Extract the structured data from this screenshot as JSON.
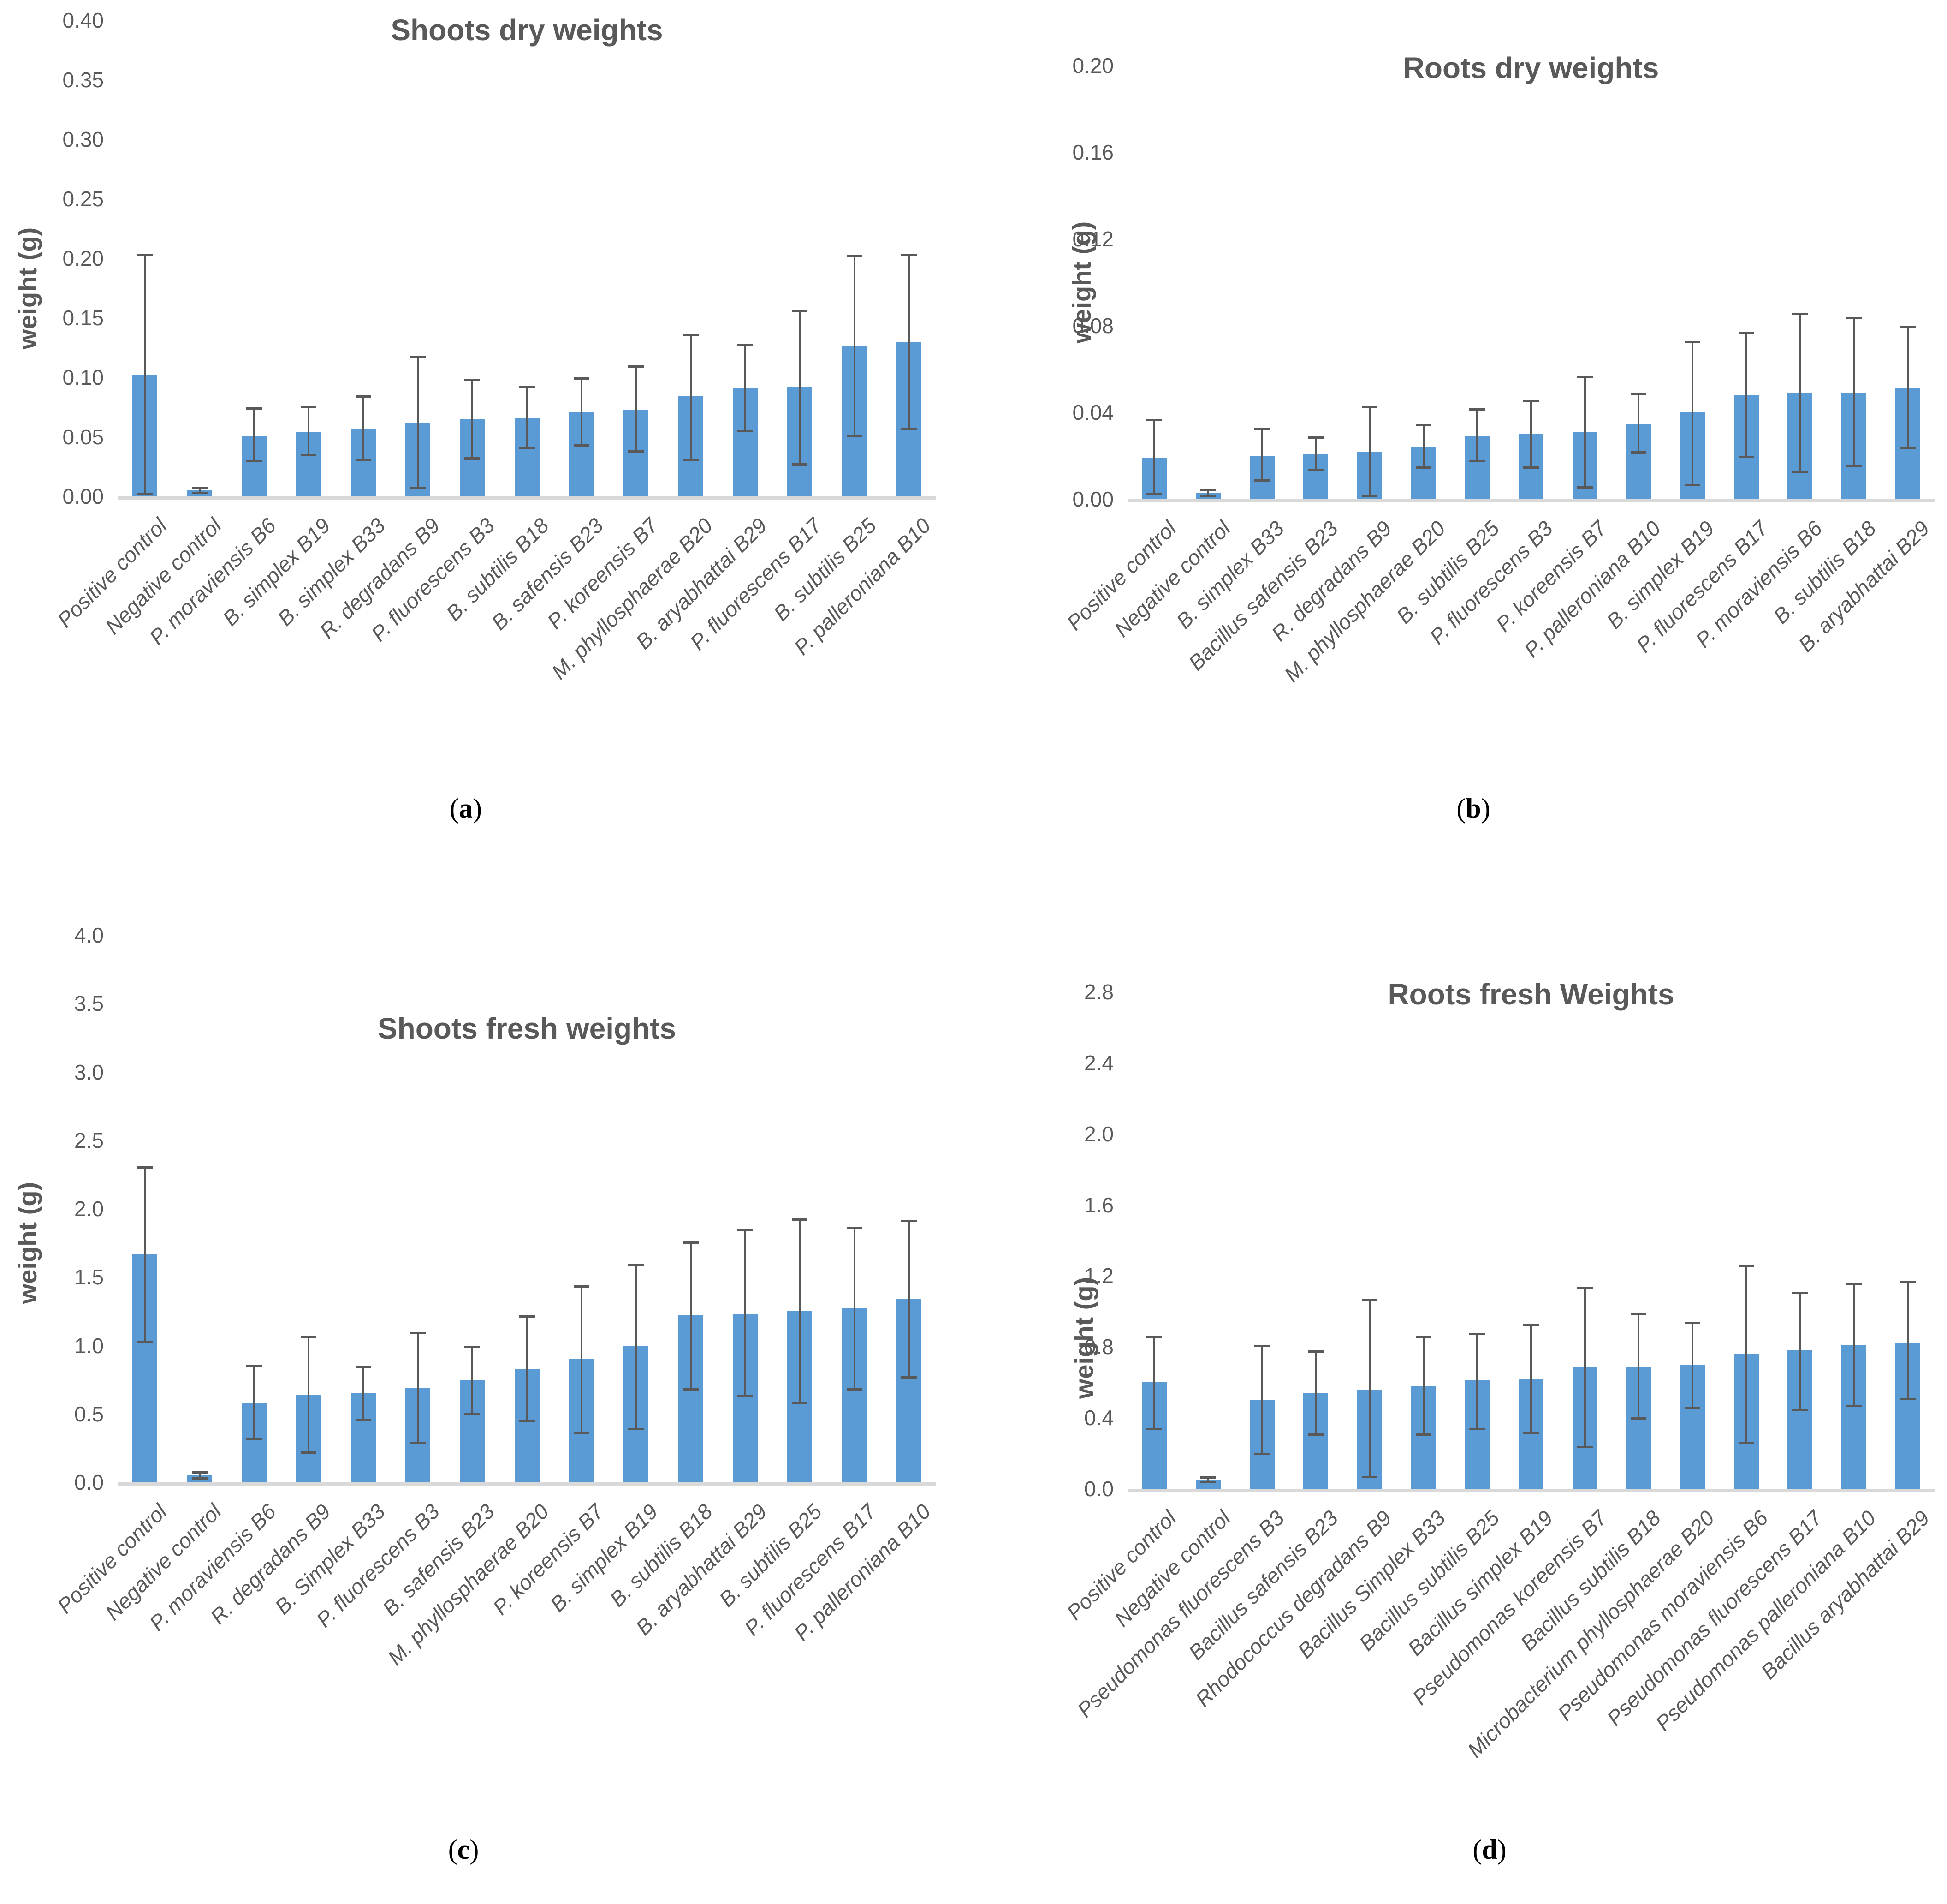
{
  "colors": {
    "bar": "#5B9BD5",
    "error_bar": "#595959",
    "axis_line": "#D9D9D9",
    "text": "#595959",
    "caption_text": "#000000"
  },
  "chart_data": [
    {
      "id": "a",
      "type": "bar",
      "title": "Shoots dry weights",
      "ylabel": "weight (g)",
      "xlabel": "",
      "caption_prefix": "(",
      "caption_letter": "a",
      "caption_suffix": ")",
      "grid": false,
      "legend": false,
      "ylim": [
        0,
        0.4
      ],
      "y_ticks": [
        "0.00",
        "0.05",
        "0.10",
        "0.15",
        "0.20",
        "0.25",
        "0.30",
        "0.35",
        "0.40"
      ],
      "categories": [
        "Positive control",
        "Negative control",
        "P. moraviensis B6",
        "B. simplex B19",
        "B. simplex B33",
        "R. degradans B9",
        "P. fluorescens B3",
        "B. subtilis B18",
        "B. safensis B23",
        "P. koreensis  B7",
        "M. phyllosphaerae B20",
        "B. aryabhattai B29",
        "P. fluorescens B17",
        "B. subtilis B25",
        "P. palleroniana B10"
      ],
      "values": [
        0.102,
        0.005,
        0.051,
        0.054,
        0.057,
        0.062,
        0.065,
        0.066,
        0.071,
        0.073,
        0.084,
        0.091,
        0.092,
        0.126,
        0.13
      ],
      "err_low": [
        0.001,
        0.002,
        0.029,
        0.034,
        0.03,
        0.006,
        0.031,
        0.04,
        0.042,
        0.037,
        0.03,
        0.054,
        0.026,
        0.05,
        0.056
      ],
      "err_high": [
        0.204,
        0.008,
        0.075,
        0.076,
        0.085,
        0.118,
        0.099,
        0.093,
        0.1,
        0.11,
        0.137,
        0.128,
        0.157,
        0.203,
        0.204
      ]
    },
    {
      "id": "b",
      "type": "bar",
      "title": "Roots dry weights",
      "ylabel": "weight (g)",
      "xlabel": "",
      "caption_prefix": "(",
      "caption_letter": "b",
      "caption_suffix": ")",
      "grid": false,
      "legend": false,
      "ylim": [
        0,
        0.2
      ],
      "y_ticks": [
        "0.00",
        "0.04",
        "0.08",
        "0.12",
        "0.16",
        "0.20"
      ],
      "categories": [
        "Positive control",
        "Negative control",
        "B. simplex B33",
        "Bacillus safensis B23",
        "R. degradans B9",
        "M. phyllosphaerae B20",
        "B. subtilis B25",
        "P. fluorescens B3",
        "P. koreensis  B7",
        "P. palleroniana B10",
        "B. simplex B19",
        "P. fluorescens B17",
        "P. moraviensis B6",
        "B. subtilis B18",
        "B. aryabhattai B29"
      ],
      "values": [
        0.019,
        0.003,
        0.02,
        0.021,
        0.022,
        0.024,
        0.029,
        0.03,
        0.031,
        0.035,
        0.04,
        0.048,
        0.049,
        0.049,
        0.051
      ],
      "err_low": [
        0.002,
        0.001,
        0.008,
        0.013,
        0.001,
        0.014,
        0.017,
        0.014,
        0.005,
        0.021,
        0.006,
        0.019,
        0.012,
        0.015,
        0.023
      ],
      "err_high": [
        0.037,
        0.005,
        0.033,
        0.029,
        0.043,
        0.035,
        0.042,
        0.046,
        0.057,
        0.049,
        0.073,
        0.077,
        0.086,
        0.084,
        0.08
      ]
    },
    {
      "id": "c",
      "type": "bar",
      "title": "Shoots fresh weights",
      "ylabel": "weight (g)",
      "xlabel": "",
      "caption_prefix": "(",
      "caption_letter": "c",
      "caption_suffix": ")",
      "grid": false,
      "legend": false,
      "ylim": [
        0,
        4.0
      ],
      "y_ticks": [
        "0.0",
        "0.5",
        "1.0",
        "1.5",
        "2.0",
        "2.5",
        "3.0",
        "3.5",
        "4.0"
      ],
      "categories": [
        "Positive control",
        "Negative control",
        "P. moraviensis B6",
        "R. degradans B9",
        "B. Simplex B33",
        "P. fluorescens B3",
        "B. safensis B23",
        "M. phyllosphaerae B20",
        "P. koreensis B7",
        "B. simplex B19",
        "B. subtilis B18",
        "B. aryabhattai B29",
        "B. subtilis B25",
        "P. fluorescens B17",
        "P. palleroniana B10"
      ],
      "values": [
        1.67,
        0.05,
        0.58,
        0.64,
        0.65,
        0.69,
        0.75,
        0.83,
        0.9,
        1.0,
        1.22,
        1.23,
        1.25,
        1.27,
        1.34
      ],
      "err_low": [
        1.02,
        0.02,
        0.31,
        0.21,
        0.45,
        0.28,
        0.49,
        0.44,
        0.35,
        0.38,
        0.67,
        0.62,
        0.57,
        0.67,
        0.76
      ],
      "err_high": [
        2.31,
        0.08,
        0.86,
        1.07,
        0.85,
        1.1,
        1.0,
        1.22,
        1.44,
        1.6,
        1.76,
        1.85,
        1.93,
        1.87,
        1.92
      ]
    },
    {
      "id": "d",
      "type": "bar",
      "title": "Roots fresh Weights",
      "ylabel": "weight (g)",
      "xlabel": "",
      "caption_prefix": "(",
      "caption_letter": "d",
      "caption_suffix": ")",
      "grid": false,
      "legend": false,
      "ylim": [
        0,
        2.8
      ],
      "y_ticks": [
        "0.0",
        "0.4",
        "0.8",
        "1.2",
        "1.6",
        "2.0",
        "2.4",
        "2.8"
      ],
      "categories": [
        "Positive control",
        "Negative control",
        "Pseudomonas fluorescens B3",
        "Bacillus safensis B23",
        "Rhodococcus degradans B9",
        "Bacillus Simplex B33",
        "Bacillus subtilis B25",
        "Bacillus simplex B19",
        "Pseudomonas koreensis  B7",
        "Bacillus subtilis B18",
        "Microbacterium phyllosphaerae B20",
        "Pseudomonas moraviensis B6",
        "Pseudomonas fluorescens B17",
        "Pseudomonas palleroniana B10",
        "Bacillus aryabhattai B29"
      ],
      "values": [
        0.6,
        0.05,
        0.5,
        0.54,
        0.56,
        0.58,
        0.61,
        0.62,
        0.69,
        0.69,
        0.7,
        0.76,
        0.78,
        0.81,
        0.82
      ],
      "err_low": [
        0.33,
        0.03,
        0.19,
        0.3,
        0.06,
        0.3,
        0.33,
        0.31,
        0.23,
        0.39,
        0.45,
        0.25,
        0.44,
        0.46,
        0.5
      ],
      "err_high": [
        0.86,
        0.07,
        0.81,
        0.78,
        1.07,
        0.86,
        0.88,
        0.93,
        1.14,
        0.99,
        0.94,
        1.26,
        1.11,
        1.16,
        1.17
      ]
    }
  ]
}
